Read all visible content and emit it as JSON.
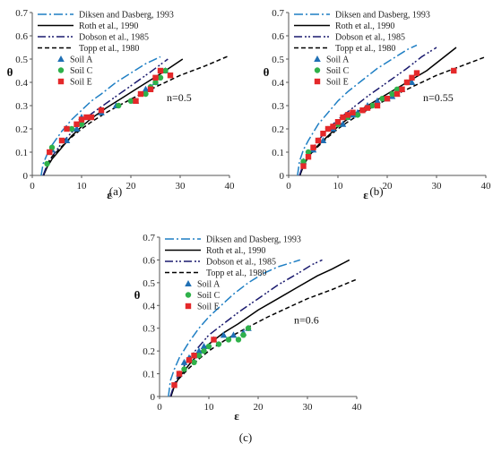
{
  "figure": {
    "captions": [
      "(a)",
      "(b)",
      "(c)"
    ]
  },
  "chart_data": [
    {
      "type": "scatter",
      "caption": "(a)",
      "annotation": "n=0.5",
      "xlabel": "ε",
      "ylabel": "θ",
      "xlim": [
        0,
        40
      ],
      "ylim": [
        0,
        0.7
      ],
      "xticks": [
        "0",
        "10",
        "20",
        "30",
        "40"
      ],
      "yticks": [
        "0",
        "0.1",
        "0.2",
        "0.3",
        "0.4",
        "0.5",
        "0.6",
        "0.7"
      ],
      "legend_position": "top-left",
      "curves": [
        {
          "name": "Diksen and Dasberg, 1993",
          "style": "dashdot",
          "color": "#1f7fc4",
          "x": [
            1.8,
            2.2,
            3,
            4,
            6,
            8,
            10,
            12,
            14,
            17,
            20,
            23,
            26
          ],
          "y": [
            0.0,
            0.05,
            0.09,
            0.13,
            0.19,
            0.24,
            0.28,
            0.32,
            0.35,
            0.4,
            0.44,
            0.48,
            0.51
          ]
        },
        {
          "name": "Roth et al., 1990",
          "style": "solid",
          "color": "#000000",
          "x": [
            2.3,
            3,
            4,
            6,
            8,
            10,
            12,
            15,
            18,
            21,
            24,
            27,
            30.5
          ],
          "y": [
            0.0,
            0.035,
            0.07,
            0.12,
            0.17,
            0.21,
            0.245,
            0.29,
            0.33,
            0.37,
            0.41,
            0.45,
            0.5
          ]
        },
        {
          "name": "Dobson et al., 1985",
          "style": "dashdotdot",
          "color": "#1a1a6e",
          "x": [
            2.2,
            3,
            4,
            6,
            8,
            10,
            12,
            15,
            18,
            21,
            24,
            27.5
          ],
          "y": [
            0.0,
            0.045,
            0.08,
            0.14,
            0.185,
            0.225,
            0.265,
            0.31,
            0.355,
            0.4,
            0.445,
            0.5
          ]
        },
        {
          "name": "Topp et al., 1980",
          "style": "dashed",
          "color": "#000000",
          "x": [
            3,
            4,
            6,
            8,
            10,
            12,
            15,
            18,
            22,
            26,
            30,
            35,
            40
          ],
          "y": [
            0.05,
            0.08,
            0.125,
            0.165,
            0.2,
            0.23,
            0.27,
            0.305,
            0.35,
            0.39,
            0.43,
            0.47,
            0.515
          ]
        }
      ],
      "series": [
        {
          "name": "Soil A",
          "marker": "triangle",
          "color": "#1f6fb4",
          "x": [
            4,
            7,
            9,
            10,
            14,
            17,
            21,
            23,
            24,
            25,
            27
          ],
          "y": [
            0.11,
            0.15,
            0.2,
            0.25,
            0.27,
            0.3,
            0.32,
            0.37,
            0.38,
            0.4,
            0.45
          ]
        },
        {
          "name": "Soil C",
          "marker": "circle",
          "color": "#2fb14a",
          "x": [
            3,
            4,
            8,
            10,
            17.5,
            20,
            23,
            24,
            25,
            26,
            27
          ],
          "y": [
            0.05,
            0.12,
            0.2,
            0.22,
            0.3,
            0.32,
            0.35,
            0.38,
            0.4,
            0.42,
            0.45
          ]
        },
        {
          "name": "Soil E",
          "marker": "square",
          "color": "#e4282a",
          "x": [
            3.5,
            6,
            7,
            9,
            10,
            11,
            12,
            14,
            21,
            22,
            24,
            25,
            26,
            28
          ],
          "y": [
            0.1,
            0.15,
            0.2,
            0.22,
            0.24,
            0.25,
            0.25,
            0.28,
            0.32,
            0.35,
            0.37,
            0.42,
            0.45,
            0.43
          ]
        }
      ]
    },
    {
      "type": "scatter",
      "caption": "(b)",
      "annotation": "n=0.55",
      "xlabel": "ε",
      "ylabel": "θ",
      "xlim": [
        0,
        40
      ],
      "ylim": [
        0,
        0.7
      ],
      "xticks": [
        "0",
        "10",
        "20",
        "30",
        "40"
      ],
      "yticks": [
        "0",
        "0.1",
        "0.2",
        "0.3",
        "0.4",
        "0.5",
        "0.6",
        "0.7"
      ],
      "legend_position": "top-left",
      "curves": [
        {
          "name": "Diksen and Dasberg, 1993",
          "style": "dashdot",
          "color": "#1f7fc4",
          "x": [
            1.8,
            2.2,
            3,
            4,
            6,
            8,
            10,
            12,
            15,
            18,
            21,
            24,
            26
          ],
          "y": [
            0.0,
            0.06,
            0.11,
            0.15,
            0.22,
            0.27,
            0.32,
            0.36,
            0.41,
            0.46,
            0.5,
            0.54,
            0.56
          ]
        },
        {
          "name": "Roth et al., 1990",
          "style": "solid",
          "color": "#000000",
          "x": [
            2.3,
            3,
            4,
            6,
            8,
            10,
            13,
            16,
            20,
            24,
            28,
            31,
            34
          ],
          "y": [
            0.0,
            0.04,
            0.08,
            0.13,
            0.17,
            0.21,
            0.26,
            0.3,
            0.35,
            0.4,
            0.45,
            0.5,
            0.55
          ]
        },
        {
          "name": "Dobson et al., 1985",
          "style": "dashdotdot",
          "color": "#1a1a6e",
          "x": [
            2.2,
            3,
            4,
            6,
            8,
            10,
            13,
            16,
            20,
            24,
            27,
            30
          ],
          "y": [
            0.0,
            0.05,
            0.09,
            0.15,
            0.2,
            0.24,
            0.29,
            0.34,
            0.4,
            0.46,
            0.51,
            0.55
          ]
        },
        {
          "name": "Topp et al., 1980",
          "style": "dashed",
          "color": "#000000",
          "x": [
            3,
            4,
            6,
            8,
            10,
            12,
            15,
            18,
            22,
            26,
            30,
            35,
            40
          ],
          "y": [
            0.05,
            0.08,
            0.125,
            0.165,
            0.2,
            0.23,
            0.27,
            0.305,
            0.35,
            0.39,
            0.43,
            0.47,
            0.51
          ]
        }
      ],
      "series": [
        {
          "name": "Soil A",
          "marker": "triangle",
          "color": "#1f6fb4",
          "x": [
            3,
            5,
            7,
            9,
            11,
            12,
            13,
            14,
            16,
            18,
            20,
            21,
            22,
            23,
            25
          ],
          "y": [
            0.06,
            0.11,
            0.15,
            0.2,
            0.22,
            0.25,
            0.26,
            0.27,
            0.3,
            0.32,
            0.33,
            0.34,
            0.35,
            0.37,
            0.4
          ]
        },
        {
          "name": "Soil C",
          "marker": "circle",
          "color": "#2fb14a",
          "x": [
            3,
            4,
            6,
            8,
            10,
            12,
            14,
            15,
            17,
            19,
            21,
            22,
            24
          ],
          "y": [
            0.06,
            0.1,
            0.15,
            0.2,
            0.22,
            0.25,
            0.26,
            0.28,
            0.3,
            0.33,
            0.35,
            0.37,
            0.4
          ]
        },
        {
          "name": "Soil E",
          "marker": "square",
          "color": "#e4282a",
          "x": [
            3,
            4,
            5,
            6,
            7,
            8,
            9,
            10,
            11,
            12,
            13,
            15,
            16,
            18,
            20,
            22,
            23,
            24,
            25,
            26,
            33.5
          ],
          "y": [
            0.04,
            0.08,
            0.12,
            0.15,
            0.18,
            0.2,
            0.21,
            0.23,
            0.25,
            0.26,
            0.27,
            0.28,
            0.29,
            0.3,
            0.33,
            0.35,
            0.37,
            0.4,
            0.42,
            0.44,
            0.45
          ]
        }
      ]
    },
    {
      "type": "scatter",
      "caption": "(c)",
      "annotation": "n=0.6",
      "xlabel": "ε",
      "ylabel": "θ",
      "xlim": [
        0,
        40
      ],
      "ylim": [
        0,
        0.7
      ],
      "xticks": [
        "0",
        "10",
        "20",
        "30",
        "40"
      ],
      "yticks": [
        "0",
        "0.1",
        "0.2",
        "0.3",
        "0.4",
        "0.5",
        "0.6",
        "0.7"
      ],
      "legend_position": "top-left",
      "curves": [
        {
          "name": "Diksen and Dasberg, 1993",
          "style": "dashdot",
          "color": "#1f7fc4",
          "x": [
            1.8,
            2.2,
            3,
            4,
            6,
            8,
            10,
            12,
            15,
            18,
            21,
            24,
            27,
            28.5
          ],
          "y": [
            0.0,
            0.07,
            0.12,
            0.17,
            0.24,
            0.3,
            0.35,
            0.39,
            0.45,
            0.5,
            0.54,
            0.57,
            0.59,
            0.6
          ]
        },
        {
          "name": "Roth et al., 1990",
          "style": "solid",
          "color": "#000000",
          "x": [
            2.3,
            3,
            4,
            6,
            8,
            10,
            13,
            16,
            20,
            24,
            28,
            32,
            35,
            38.5
          ],
          "y": [
            0.0,
            0.045,
            0.085,
            0.14,
            0.19,
            0.23,
            0.28,
            0.32,
            0.38,
            0.43,
            0.48,
            0.53,
            0.56,
            0.6
          ]
        },
        {
          "name": "Dobson et al., 1985",
          "style": "dashdotdot",
          "color": "#1a1a6e",
          "x": [
            2.2,
            3,
            4,
            6,
            8,
            10,
            13,
            16,
            20,
            24,
            28,
            31,
            33
          ],
          "y": [
            0.0,
            0.055,
            0.1,
            0.17,
            0.22,
            0.27,
            0.32,
            0.37,
            0.43,
            0.49,
            0.54,
            0.58,
            0.6
          ]
        },
        {
          "name": "Topp et al., 1980",
          "style": "dashed",
          "color": "#000000",
          "x": [
            3,
            4,
            6,
            8,
            10,
            12,
            15,
            18,
            22,
            26,
            30,
            35,
            40
          ],
          "y": [
            0.05,
            0.08,
            0.125,
            0.165,
            0.2,
            0.23,
            0.27,
            0.305,
            0.35,
            0.39,
            0.43,
            0.47,
            0.515
          ]
        }
      ],
      "series": [
        {
          "name": "Soil A",
          "marker": "triangle",
          "color": "#1f6fb4",
          "x": [
            4,
            5,
            6,
            7,
            8,
            9,
            11,
            13,
            15,
            17,
            18
          ],
          "y": [
            0.1,
            0.15,
            0.17,
            0.18,
            0.2,
            0.22,
            0.25,
            0.27,
            0.27,
            0.28,
            0.3
          ]
        },
        {
          "name": "Soil C",
          "marker": "circle",
          "color": "#2fb14a",
          "x": [
            3,
            5,
            7,
            8,
            9,
            10,
            12,
            14,
            16,
            17,
            18
          ],
          "y": [
            0.05,
            0.12,
            0.15,
            0.18,
            0.2,
            0.22,
            0.23,
            0.25,
            0.25,
            0.27,
            0.3
          ]
        },
        {
          "name": "Soil E",
          "marker": "square",
          "color": "#e4282a",
          "x": [
            3,
            4,
            6,
            7,
            11
          ],
          "y": [
            0.05,
            0.1,
            0.16,
            0.18,
            0.25
          ]
        }
      ]
    }
  ]
}
